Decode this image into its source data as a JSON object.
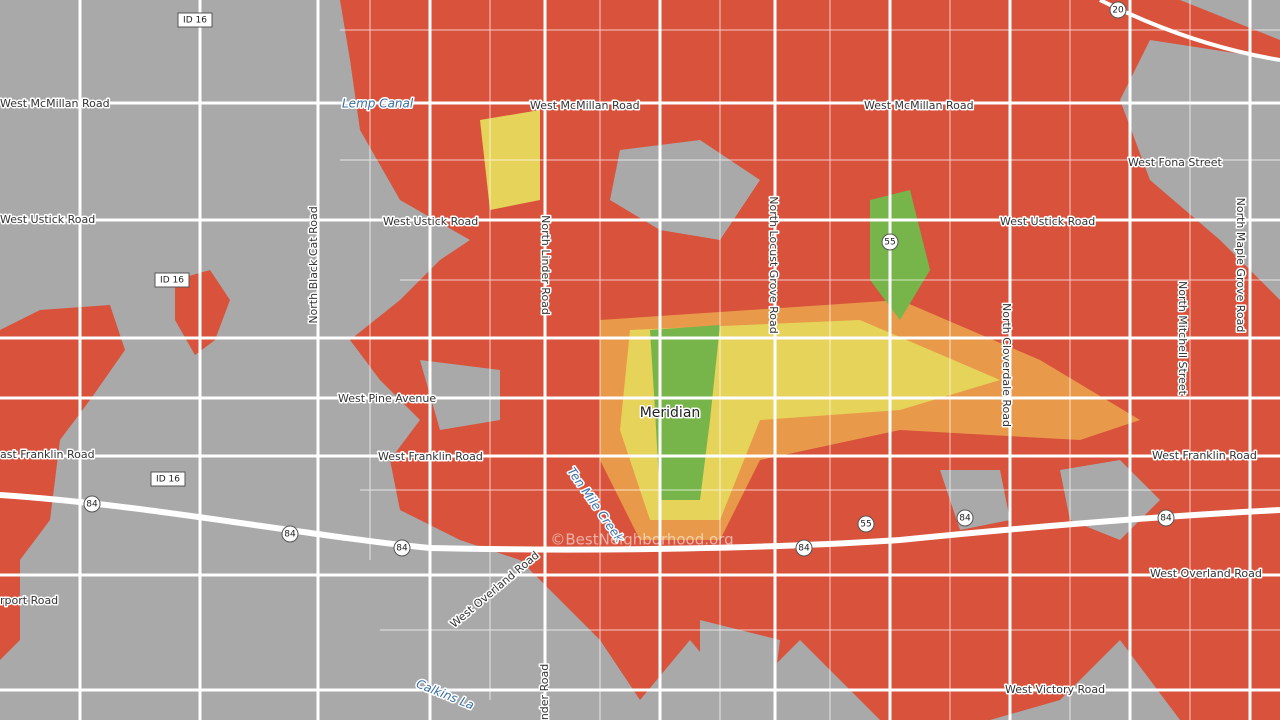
{
  "map": {
    "shields": [
      "ID 16",
      "20",
      "55",
      "ID 16",
      "ID 16",
      "84",
      "84",
      "84",
      "84",
      "55",
      "84",
      "84"
    ],
    "road_labels": [
      "West McMillan Road",
      "West McMillan Road",
      "West McMillan Road",
      "West Fona Street",
      "West Ustick Road",
      "West Ustick Road",
      "West Ustick Road",
      "North Black Cat Road",
      "North Linder Road",
      "North Locust Grove Road",
      "North Cloverdale Road",
      "North Mitchell Street",
      "North Maple Grove Road",
      "West Pine Avenue",
      "ast Franklin Road",
      "West Franklin Road",
      "West Franklin Road",
      "West Overland Road",
      "West Overland Road",
      "rport Road",
      "nder Road",
      "West Victory Road"
    ],
    "waterways": [
      "Lemp Canal",
      "Ten Mile Creek",
      "Calkins La"
    ],
    "places": [
      "Meridian"
    ],
    "watermark": "©BestNeighborhood.org"
  }
}
